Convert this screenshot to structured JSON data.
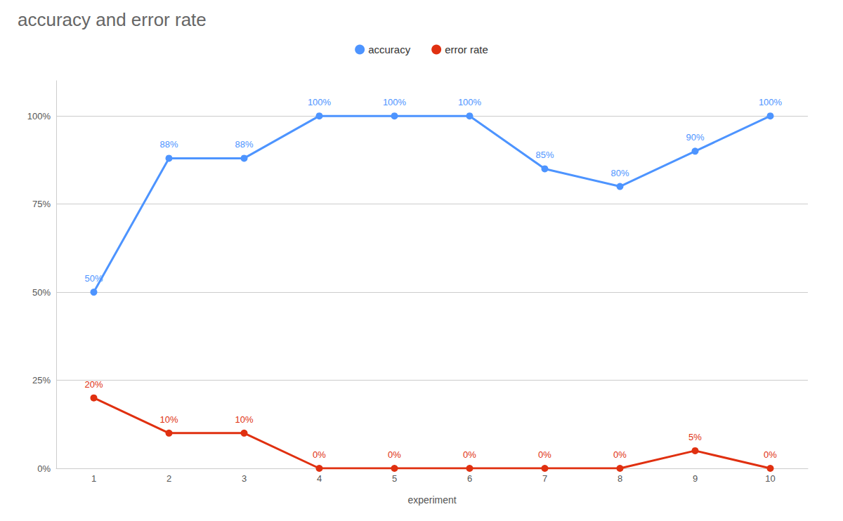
{
  "chart_data": {
    "type": "line",
    "title": "accuracy and error rate",
    "xlabel": "experiment",
    "x": [
      1,
      2,
      3,
      4,
      5,
      6,
      7,
      8,
      9,
      10
    ],
    "xlim": [
      0.5,
      10.5
    ],
    "xticks": [
      1,
      2,
      3,
      4,
      5,
      6,
      7,
      8,
      9,
      10
    ],
    "ylim": [
      0,
      110
    ],
    "yticks": [
      {
        "value": 0,
        "label": "0%"
      },
      {
        "value": 25,
        "label": "25%"
      },
      {
        "value": 50,
        "label": "50%"
      },
      {
        "value": 75,
        "label": "75%"
      },
      {
        "value": 100,
        "label": "100%"
      }
    ],
    "grid": true,
    "legend": "top",
    "marker": "circle",
    "data_labels": true,
    "series": [
      {
        "name": "accuracy",
        "color": "#4d94ff",
        "values": [
          50,
          88,
          88,
          100,
          100,
          100,
          85,
          80,
          90,
          100
        ],
        "value_labels": [
          "50%",
          "88%",
          "88%",
          "100%",
          "100%",
          "100%",
          "85%",
          "80%",
          "90%",
          "100%"
        ]
      },
      {
        "name": "error rate",
        "color": "#e03010",
        "values": [
          20,
          10,
          10,
          0,
          0,
          0,
          0,
          0,
          5,
          0
        ],
        "value_labels": [
          "20%",
          "10%",
          "10%",
          "0%",
          "0%",
          "0%",
          "0%",
          "0%",
          "5%",
          "0%"
        ]
      }
    ]
  }
}
